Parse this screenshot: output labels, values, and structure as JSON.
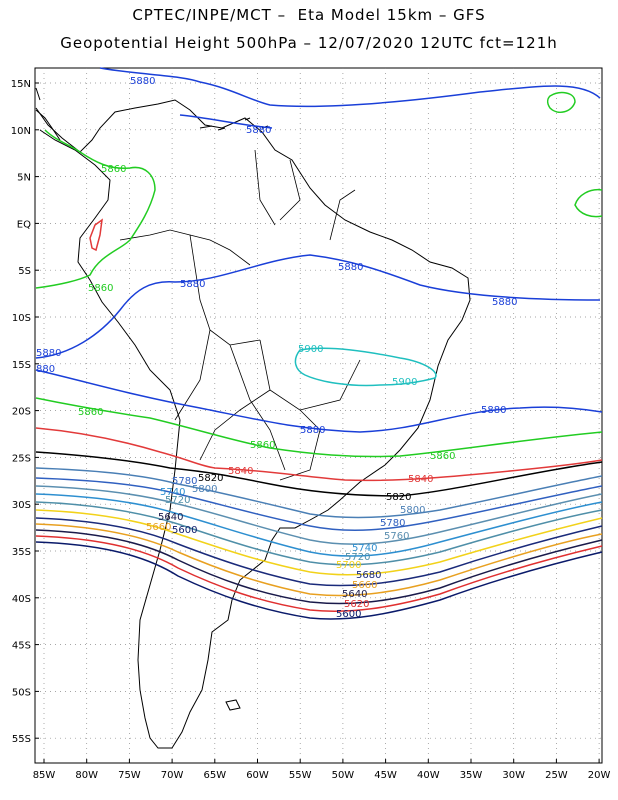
{
  "title_line1": "CPTEC/INPE/MCT –  Eta Model 15km – GFS",
  "title_line2": "Geopotential Height 500hPa – 12/07/2020 12UTC fct=121h",
  "lat_ticks": [
    "15N",
    "10N",
    "5N",
    "EQ",
    "5S",
    "10S",
    "15S",
    "20S",
    "25S",
    "30S",
    "35S",
    "40S",
    "45S",
    "50S",
    "55S"
  ],
  "lon_ticks": [
    "85W",
    "80W",
    "75W",
    "70W",
    "65W",
    "60W",
    "55W",
    "50W",
    "45W",
    "40W",
    "35W",
    "30W",
    "25W",
    "20W"
  ],
  "contour_colors": {
    "5900": "#1fbfbf",
    "5880": "#1a3fd8",
    "5860": "#22cc22",
    "5840": "#e23a3a",
    "5820": "#000000",
    "5800": "#4a7fb5",
    "5780": "#3060c0",
    "5760": "#5b8fb0",
    "5740": "#2d8fd0",
    "5720": "#4f8fa8",
    "5700": "#f2d21a",
    "5680": "#1a2a7a",
    "5660": "#e8a020",
    "5640": "#1a1a4a",
    "5620": "#e03030",
    "5600": "#0a1a6a"
  },
  "contour_labels": [
    {
      "text": "5880",
      "level": "5880"
    },
    {
      "text": "5880",
      "level": "5880"
    },
    {
      "text": "5880",
      "level": "5880"
    },
    {
      "text": "5880",
      "level": "5880"
    },
    {
      "text": "5880",
      "level": "5880"
    },
    {
      "text": "5880",
      "level": "5880"
    },
    {
      "text": "880",
      "level": "5880"
    },
    {
      "text": "5880",
      "level": "5880"
    },
    {
      "text": "5880",
      "level": "5880"
    },
    {
      "text": "5860",
      "level": "5860"
    },
    {
      "text": "5860",
      "level": "5860"
    },
    {
      "text": "5860",
      "level": "5860"
    },
    {
      "text": "5860",
      "level": "5860"
    },
    {
      "text": "5860",
      "level": "5860"
    },
    {
      "text": "5900",
      "level": "5900"
    },
    {
      "text": "5900",
      "level": "5900"
    },
    {
      "text": "5840",
      "level": "5840"
    },
    {
      "text": "5840",
      "level": "5840"
    },
    {
      "text": "5820",
      "level": "5820"
    },
    {
      "text": "5820",
      "level": "5820"
    },
    {
      "text": "5800",
      "level": "5800"
    },
    {
      "text": "5800",
      "level": "5800"
    },
    {
      "text": "5780",
      "level": "5780"
    },
    {
      "text": "5780",
      "level": "5780"
    },
    {
      "text": "5760",
      "level": "5760"
    },
    {
      "text": "5740",
      "level": "5740"
    },
    {
      "text": "5740",
      "level": "5740"
    },
    {
      "text": "5720",
      "level": "5720"
    },
    {
      "text": "5720",
      "level": "5720"
    },
    {
      "text": "5700",
      "level": "5700"
    },
    {
      "text": "5680",
      "level": "5680"
    },
    {
      "text": "5660",
      "level": "5660"
    },
    {
      "text": "5660",
      "level": "5660"
    },
    {
      "text": "5640",
      "level": "5640"
    },
    {
      "text": "5640",
      "level": "5640"
    },
    {
      "text": "5620",
      "level": "5620"
    },
    {
      "text": "5600",
      "level": "5600"
    },
    {
      "text": "5600",
      "level": "5600"
    }
  ]
}
